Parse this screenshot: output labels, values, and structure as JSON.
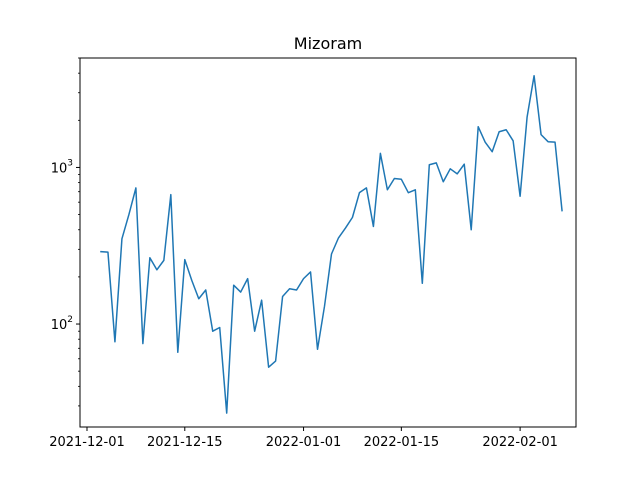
{
  "chart_data": {
    "type": "line",
    "title": "Mizoram",
    "xlabel": "",
    "ylabel": "",
    "yscale": "log",
    "ylim": [
      22,
      5000
    ],
    "xlim": [
      "2021-11-30",
      "2022-02-09"
    ],
    "x_ticks": [
      "2021-12-01",
      "2021-12-15",
      "2022-01-01",
      "2022-01-15",
      "2022-02-01"
    ],
    "y_ticks": [
      {
        "value": 100,
        "base": "10",
        "exp": "2"
      },
      {
        "value": 1000,
        "base": "10",
        "exp": "3"
      }
    ],
    "grid": false,
    "series": [
      {
        "color": "#1f77b4",
        "points": [
          [
            "2021-12-03",
            290
          ],
          [
            "2021-12-04",
            288
          ],
          [
            "2021-12-05",
            77
          ],
          [
            "2021-12-06",
            350
          ],
          [
            "2021-12-07",
            500
          ],
          [
            "2021-12-08",
            740
          ],
          [
            "2021-12-09",
            75
          ],
          [
            "2021-12-10",
            265
          ],
          [
            "2021-12-11",
            222
          ],
          [
            "2021-12-12",
            255
          ],
          [
            "2021-12-13",
            670
          ],
          [
            "2021-12-14",
            66
          ],
          [
            "2021-12-15",
            258
          ],
          [
            "2021-12-16",
            190
          ],
          [
            "2021-12-17",
            145
          ],
          [
            "2021-12-18",
            165
          ],
          [
            "2021-12-19",
            90
          ],
          [
            "2021-12-20",
            95
          ],
          [
            "2021-12-21",
            27
          ],
          [
            "2021-12-22",
            177
          ],
          [
            "2021-12-23",
            160
          ],
          [
            "2021-12-24",
            195
          ],
          [
            "2021-12-25",
            90
          ],
          [
            "2021-12-26",
            142
          ],
          [
            "2021-12-27",
            53
          ],
          [
            "2021-12-28",
            58
          ],
          [
            "2021-12-29",
            150
          ],
          [
            "2021-12-30",
            168
          ],
          [
            "2021-12-31",
            165
          ],
          [
            "2022-01-01",
            195
          ],
          [
            "2022-01-02",
            215
          ],
          [
            "2022-01-03",
            69
          ],
          [
            "2022-01-04",
            130
          ],
          [
            "2022-01-05",
            280
          ],
          [
            "2022-01-06",
            355
          ],
          [
            "2022-01-07",
            410
          ],
          [
            "2022-01-08",
            480
          ],
          [
            "2022-01-09",
            690
          ],
          [
            "2022-01-10",
            740
          ],
          [
            "2022-01-11",
            420
          ],
          [
            "2022-01-12",
            1230
          ],
          [
            "2022-01-13",
            720
          ],
          [
            "2022-01-14",
            850
          ],
          [
            "2022-01-15",
            840
          ],
          [
            "2022-01-16",
            690
          ],
          [
            "2022-01-17",
            720
          ],
          [
            "2022-01-18",
            182
          ],
          [
            "2022-01-19",
            1040
          ],
          [
            "2022-01-20",
            1070
          ],
          [
            "2022-01-21",
            810
          ],
          [
            "2022-01-22",
            980
          ],
          [
            "2022-01-23",
            910
          ],
          [
            "2022-01-24",
            1050
          ],
          [
            "2022-01-25",
            400
          ],
          [
            "2022-01-26",
            1820
          ],
          [
            "2022-01-27",
            1450
          ],
          [
            "2022-01-28",
            1260
          ],
          [
            "2022-01-29",
            1690
          ],
          [
            "2022-01-30",
            1740
          ],
          [
            "2022-01-31",
            1480
          ],
          [
            "2022-02-01",
            655
          ],
          [
            "2022-02-02",
            2100
          ],
          [
            "2022-02-03",
            3850
          ],
          [
            "2022-02-04",
            1620
          ],
          [
            "2022-02-05",
            1460
          ],
          [
            "2022-02-06",
            1450
          ],
          [
            "2022-02-07",
            530
          ]
        ]
      }
    ]
  }
}
